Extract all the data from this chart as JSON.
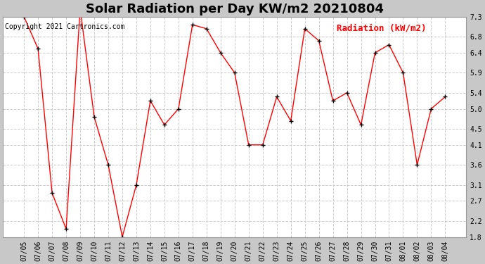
{
  "title": "Solar Radiation per Day KW/m2 20210804",
  "copyright_text": "Copyright 2021 Cartronics.com",
  "legend_label": "Radiation (kW/m2)",
  "dates": [
    "07/05",
    "07/06",
    "07/07",
    "07/08",
    "07/09",
    "07/10",
    "07/11",
    "07/12",
    "07/13",
    "07/14",
    "07/15",
    "07/16",
    "07/17",
    "07/18",
    "07/19",
    "07/20",
    "07/21",
    "07/22",
    "07/23",
    "07/24",
    "07/25",
    "07/26",
    "07/27",
    "07/28",
    "07/29",
    "07/30",
    "07/31",
    "08/01",
    "08/02",
    "08/03",
    "08/04"
  ],
  "values": [
    7.3,
    6.5,
    2.9,
    2.0,
    7.5,
    4.8,
    3.6,
    1.8,
    3.1,
    5.2,
    4.6,
    5.0,
    7.1,
    7.0,
    6.4,
    5.9,
    4.1,
    4.1,
    5.3,
    4.7,
    7.0,
    6.7,
    5.2,
    5.4,
    4.6,
    6.4,
    6.6,
    5.9,
    3.6,
    5.0,
    5.3
  ],
  "ylim_min": 1.8,
  "ylim_max": 7.3,
  "yticks": [
    1.8,
    2.2,
    2.7,
    3.1,
    3.6,
    4.1,
    4.5,
    5.0,
    5.4,
    5.9,
    6.4,
    6.8,
    7.3
  ],
  "line_color": "red",
  "marker_color": "black",
  "plot_bg_color": "#ffffff",
  "fig_bg_color": "#c8c8c8",
  "grid_color": "#cccccc",
  "title_fontsize": 13,
  "copyright_fontsize": 7,
  "legend_fontsize": 9,
  "tick_fontsize": 7
}
